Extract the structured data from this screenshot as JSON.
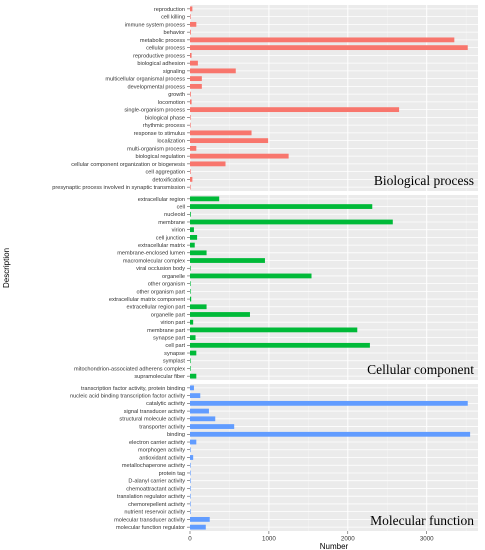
{
  "chart_data": {
    "type": "bar",
    "orientation": "horizontal",
    "xlabel": "Number",
    "ylabel": "Description",
    "xlim": [
      0,
      3650
    ],
    "xticks": [
      0,
      1000,
      2000,
      3000
    ],
    "grid": true,
    "legend": "none",
    "panels": [
      {
        "name": "Biological process",
        "color": "#F8766D",
        "categories": [
          "reproduction",
          "cell killing",
          "immune system process",
          "behavior",
          "metabolic process",
          "cellular process",
          "reproductive process",
          "biological adhesion",
          "signaling",
          "multicellular organismal process",
          "developmental process",
          "growth",
          "locomotion",
          "single-organism process",
          "biological phase",
          "rhythmic process",
          "response to stimulus",
          "localization",
          "multi-organism process",
          "biological regulation",
          "cellular component organization or biogenesis",
          "cell aggregation",
          "detoxification",
          "presynaptic process involved in synaptic transmission"
        ],
        "values": [
          30,
          5,
          80,
          10,
          3350,
          3520,
          20,
          100,
          580,
          150,
          150,
          10,
          20,
          2650,
          5,
          5,
          780,
          990,
          80,
          1250,
          450,
          5,
          30,
          5
        ]
      },
      {
        "name": "Cellular component",
        "color": "#00BA38",
        "categories": [
          "extracellular region",
          "cell",
          "nucleoid",
          "membrane",
          "virion",
          "cell junction",
          "extracellular matrix",
          "membrane-enclosed lumen",
          "macromolecular complex",
          "viral occlusion body",
          "organelle",
          "other organism",
          "other organism part",
          "extracellular matrix component",
          "extracellular region part",
          "organelle part",
          "virion part",
          "membrane part",
          "synapse part",
          "cell part",
          "synapse",
          "symplast",
          "mitochondrion-associated adherens complex",
          "supramolecular fiber"
        ],
        "values": [
          370,
          2310,
          10,
          2570,
          50,
          90,
          60,
          210,
          950,
          5,
          1540,
          5,
          5,
          15,
          210,
          760,
          40,
          2120,
          70,
          2280,
          80,
          5,
          5,
          80
        ]
      },
      {
        "name": "Molecular function",
        "color": "#619CFF",
        "categories": [
          "transcription factor activity, protein binding",
          "nucleic acid binding transcription factor activity",
          "catalytic activity",
          "signal transducer activity",
          "structural molecule activity",
          "transporter activity",
          "binding",
          "electron carrier activity",
          "morphogen activity",
          "antioxidant activity",
          "metallochaperone activity",
          "protein tag",
          "D-alanyl carrier activity",
          "chemoattractant activity",
          "translation regulator activity",
          "chemorepellent activity",
          "nutrient reservoir activity",
          "molecular transducer activity",
          "molecular function regulator"
        ],
        "values": [
          50,
          130,
          3520,
          240,
          320,
          560,
          3550,
          80,
          5,
          40,
          5,
          5,
          5,
          5,
          5,
          5,
          5,
          250,
          200
        ]
      }
    ]
  }
}
